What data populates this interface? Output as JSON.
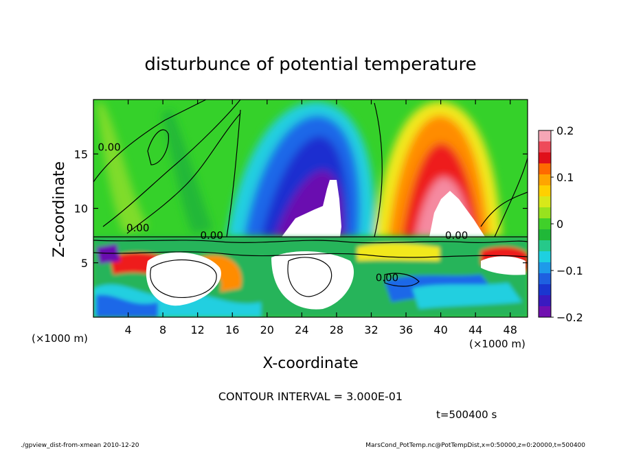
{
  "chart_data": {
    "type": "heatmap",
    "title": "disturbunce of potential temperature",
    "xlabel": "X-coordinate",
    "ylabel": "Z-coordinate",
    "x_unit_left": "(×1000 m)",
    "x_unit_right": "(×1000 m)",
    "x_ticks": [
      "4",
      "8",
      "12",
      "16",
      "20",
      "24",
      "28",
      "32",
      "36",
      "40",
      "44",
      "48"
    ],
    "y_ticks": [
      "5",
      "10",
      "15"
    ],
    "xlim": [
      0,
      50
    ],
    "ylim": [
      0,
      20
    ],
    "colorbar": {
      "ticks": [
        "0.2",
        "0.1",
        "0",
        "−0.1",
        "−0.2"
      ],
      "range": [
        -0.2,
        0.2
      ]
    },
    "contour_labels": [
      "0.00",
      "0.00",
      "0.00",
      "0.00",
      "0.00"
    ],
    "contour_interval": "CONTOUR INTERVAL = 3.000E-01",
    "time": "t=500400 s"
  },
  "footer": {
    "left": "./gpview_dist-from-xmean  2010-12-20",
    "right": "MarsCond_PotTemp.nc@PotTempDist,x=0:50000,z=0:20000,t=500400"
  }
}
